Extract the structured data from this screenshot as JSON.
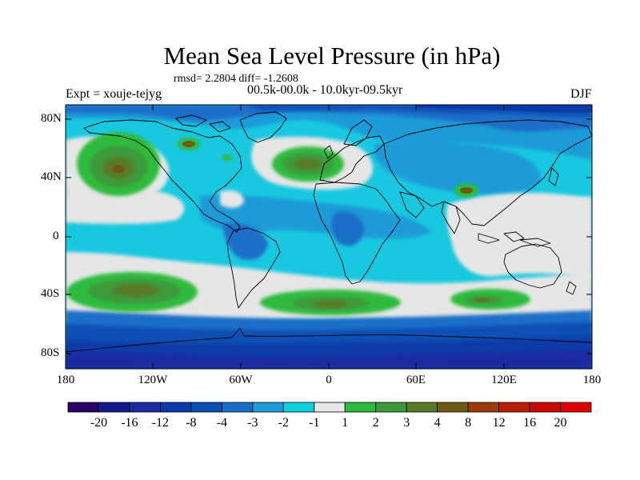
{
  "title": "Mean Sea Level Pressure (in hPa)",
  "stats": "rmsd= 2.2804 diff= -1.2608",
  "experiment": "Expt = xouje-tejyg",
  "period": "00.5k-00.0k - 10.0kyr-09.5kyr",
  "season": "DJF",
  "lat_labels": [
    "80N",
    "40N",
    "0",
    "40S",
    "80S"
  ],
  "lon_labels": [
    "180",
    "120W",
    "60W",
    "0",
    "60E",
    "120E",
    "180"
  ],
  "colorbar": {
    "labels": [
      "-20",
      "-16",
      "-12",
      "-8",
      "-4",
      "-3",
      "-2",
      "-1",
      "1",
      "2",
      "3",
      "4",
      "8",
      "12",
      "16",
      "20"
    ],
    "colors": [
      "#2b0066",
      "#151a8a",
      "#1e2aa0",
      "#0a3aa8",
      "#0a4fb4",
      "#1a6ec8",
      "#1e9bd8",
      "#10d0e0",
      "#e6e6e6",
      "#2dbb3e",
      "#3c9a3c",
      "#5a7a28",
      "#6e5a14",
      "#9a3c0c",
      "#b81e08",
      "#cc0a04",
      "#dd0000"
    ]
  },
  "colors": {
    "background": "#ffffff",
    "map_base": "#18c8e0",
    "coast": "#000000"
  }
}
